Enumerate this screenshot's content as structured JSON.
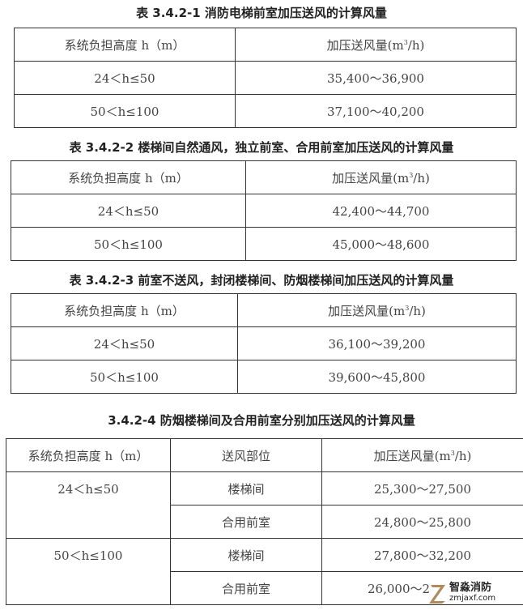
{
  "tables": [
    {
      "title": "表 3.4.2-1 消防电梯前室加压送风的计算风量",
      "headers": [
        "系统负担高度 h（m）",
        "加压送风量(m",
        "3",
        "/h)"
      ],
      "rows": [
        [
          "24＜h≤50",
          "35,400～36,900"
        ],
        [
          "50＜h≤100",
          "37,100～40,200"
        ]
      ]
    },
    {
      "title": "表 3.4.2-2 楼梯间自然通风，独立前室、合用前室加压送风的计算风量",
      "headers": [
        "系统负担高度 h（m）",
        "加压送风量(m",
        "3",
        "/h)"
      ],
      "rows": [
        [
          "24＜h≤50",
          "42,400～44,700"
        ],
        [
          "50＜h≤100",
          "45,000～48,600"
        ]
      ]
    },
    {
      "title": "表 3.4.2-3 前室不送风，封闭楼梯间、防烟楼梯间加压送风的计算风量",
      "headers": [
        "系统负担高度 h（m）",
        "加压送风量(m",
        "3",
        "/h)"
      ],
      "rows": [
        [
          "24＜h≤50",
          "36,100～39,200"
        ],
        [
          "50＜h≤100",
          "39,600～45,800"
        ]
      ]
    },
    {
      "title": "3.4.2-4 防烟楼梯间及合用前室分别加压送风的计算风量",
      "headers": [
        "系统负担高度 h（m）",
        "送风部位",
        "加压送风量(m",
        "3",
        "/h)"
      ],
      "groups": [
        {
          "height": "24＜h≤50",
          "rows": [
            [
              "楼梯间",
              "25,300～27,500"
            ],
            [
              "合用前室",
              "24,800～25,800"
            ]
          ]
        },
        {
          "height": "50＜h≤100",
          "rows": [
            [
              "楼梯间",
              "27,800～32,200"
            ],
            [
              "合用前室",
              "26,000～2"
            ]
          ]
        }
      ]
    }
  ],
  "watermark": {
    "name": "智淼消防",
    "site": "zmjaxf.com",
    "color": "#b08a5a"
  }
}
